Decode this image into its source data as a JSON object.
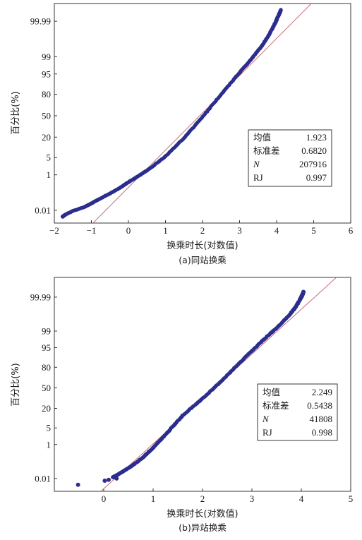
{
  "colors": {
    "points": "#2b2e8c",
    "fit_line": "#c0606a",
    "axis": "#222222"
  },
  "chart_data": [
    {
      "type": "scatter",
      "caption": "(a)同站换乘",
      "xlabel": "换乘时长(对数值)",
      "ylabel": "百分比(%)",
      "xlim": [
        -2,
        6
      ],
      "x_ticks": [
        -2,
        -1,
        0,
        1,
        2,
        3,
        4,
        5,
        6
      ],
      "x_tick_labels": [
        "−2",
        "−1",
        "0",
        "1",
        "2",
        "3",
        "4",
        "5",
        "6"
      ],
      "y_scale": "normal-probability",
      "y_ticks": [
        0.01,
        1,
        5,
        20,
        50,
        80,
        95,
        99,
        99.99
      ],
      "y_tick_labels": [
        "0.01",
        "1",
        "5",
        "20",
        "50",
        "80",
        "95",
        "99",
        "99.99"
      ],
      "legend_position": "right",
      "stats": [
        {
          "label": "均值",
          "value": "1.923",
          "italic": false
        },
        {
          "label": "标准差",
          "value": "0.6820",
          "italic": false
        },
        {
          "label": "N",
          "value": "207916",
          "italic": true
        },
        {
          "label": "RJ",
          "value": "0.997",
          "italic": false
        }
      ],
      "fit_line": {
        "mean": 1.923,
        "sd": 0.682
      },
      "curve": {
        "x": [
          -1.78,
          -1.7,
          -1.5,
          -1.2,
          -1.0,
          -0.8,
          -0.5,
          -0.2,
          0.0,
          0.3,
          0.6,
          1.0,
          1.5,
          2.0,
          2.5,
          3.0,
          3.3,
          3.6,
          3.8,
          3.95,
          4.05,
          4.12
        ],
        "y": [
          0.0035,
          0.005,
          0.009,
          0.016,
          0.028,
          0.05,
          0.11,
          0.25,
          0.45,
          0.95,
          2.0,
          5.5,
          19,
          48,
          80,
          95.5,
          98.6,
          99.7,
          99.93,
          99.985,
          99.996,
          99.9985
        ]
      }
    },
    {
      "type": "scatter",
      "caption": "(b)异站换乘",
      "xlabel": "换乘时长(对数值)",
      "ylabel": "百分比(%)",
      "xlim": [
        -1,
        5
      ],
      "x_ticks": [
        0,
        1,
        2,
        3,
        4,
        5
      ],
      "x_tick_labels": [
        "0",
        "1",
        "2",
        "3",
        "4",
        "5"
      ],
      "y_scale": "normal-probability",
      "y_ticks": [
        0.01,
        1,
        5,
        20,
        50,
        80,
        95,
        99,
        99.99
      ],
      "y_tick_labels": [
        "0.01",
        "1",
        "5",
        "20",
        "50",
        "80",
        "95",
        "99",
        "99.99"
      ],
      "legend_position": "right",
      "stats": [
        {
          "label": "均值",
          "value": "2.249",
          "italic": false
        },
        {
          "label": "标准差",
          "value": "0.5438",
          "italic": false
        },
        {
          "label": "N",
          "value": "41808",
          "italic": true
        },
        {
          "label": "RJ",
          "value": "0.998",
          "italic": false
        }
      ],
      "fit_line": {
        "mean": 2.249,
        "sd": 0.5438
      },
      "curve": {
        "x": [
          0.18,
          0.3,
          0.45,
          0.6,
          0.8,
          1.0,
          1.3,
          1.6,
          2.0,
          2.4,
          2.8,
          3.2,
          3.5,
          3.75,
          3.9,
          4.0,
          4.05
        ],
        "y": [
          0.012,
          0.02,
          0.04,
          0.08,
          0.22,
          0.7,
          3.5,
          13,
          33,
          62,
          87,
          97.2,
          99.3,
          99.85,
          99.96,
          99.99,
          99.996
        ]
      },
      "extra_points": [
        {
          "x": -0.52,
          "y": 0.0035
        },
        {
          "x": 0.02,
          "y": 0.007
        },
        {
          "x": 0.1,
          "y": 0.008
        },
        {
          "x": 0.26,
          "y": 0.01
        }
      ]
    }
  ]
}
